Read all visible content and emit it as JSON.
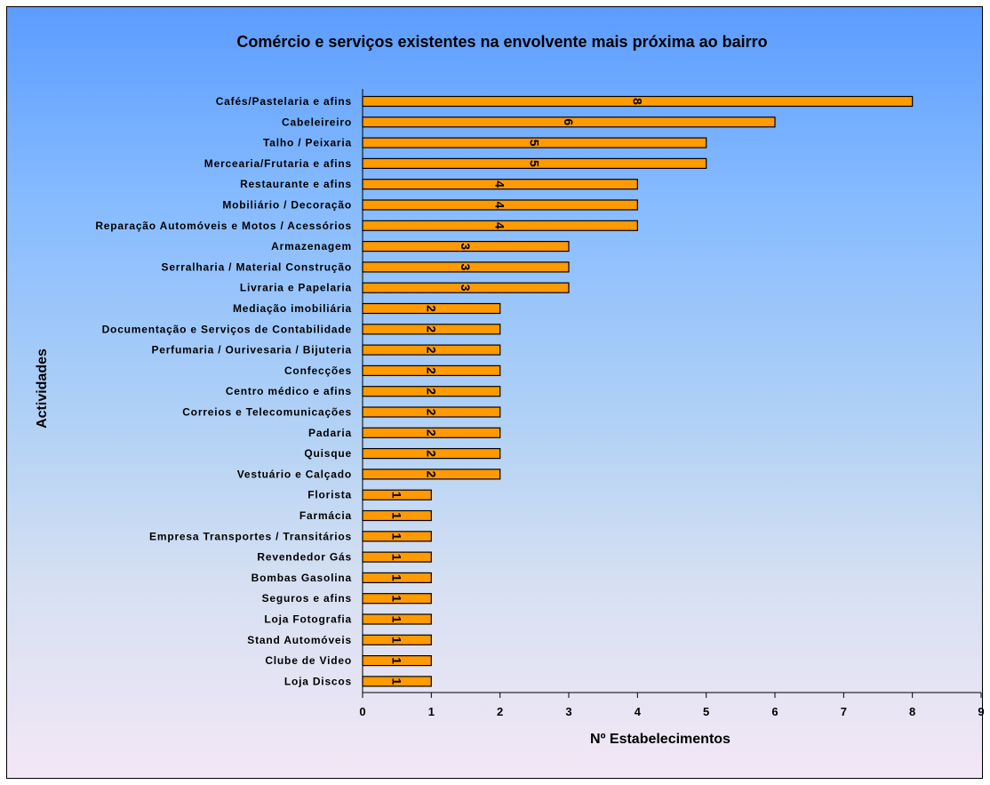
{
  "colors": {
    "bar_fill": "#ff9a00",
    "bar_stroke": "#000000",
    "background_top": "#5c9cff",
    "background_bottom": "#f3e7f5"
  },
  "chart_data": {
    "type": "bar",
    "orientation": "horizontal",
    "title": "Comércio e serviços existentes na envolvente mais próxima ao bairro",
    "xlabel": "Nº Estabelecimentos",
    "ylabel": "Actividades",
    "xlim": [
      0,
      9
    ],
    "x_ticks": [
      0,
      1,
      2,
      3,
      4,
      5,
      6,
      7,
      8,
      9
    ],
    "grid": false,
    "legend": "none",
    "data_labels": "rotated",
    "categories": [
      "Cafés/Pastelaria e afins",
      "Cabeleireiro",
      "Talho / Peixaria",
      "Mercearia/Frutaria e afins",
      "Restaurante e afins",
      "Mobiliário / Decoração",
      "Reparação Automóveis e Motos / Acessórios",
      "Armazenagem",
      "Serralharia / Material Construção",
      "Livraria e Papelaria",
      "Mediação imobiliária",
      "Documentação e Serviços de Contabilidade",
      "Perfumaria / Ourivesaria / Bijuteria",
      "Confecções",
      "Centro médico e afins",
      "Correios e Telecomunicações",
      "Padaria",
      "Quisque",
      "Vestuário e Calçado",
      "Florista",
      "Farmácia",
      "Empresa Transportes / Transitários",
      "Revendedor Gás",
      "Bombas Gasolina",
      "Seguros e afins",
      "Loja Fotografia",
      "Stand Automóveis",
      "Clube de Video",
      "Loja Discos"
    ],
    "values": [
      8,
      6,
      5,
      5,
      4,
      4,
      4,
      3,
      3,
      3,
      2,
      2,
      2,
      2,
      2,
      2,
      2,
      2,
      2,
      1,
      1,
      1,
      1,
      1,
      1,
      1,
      1,
      1,
      1
    ]
  }
}
